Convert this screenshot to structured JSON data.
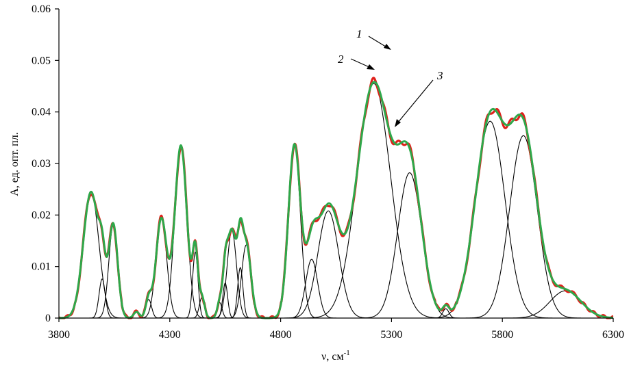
{
  "chart_data": {
    "type": "line",
    "xlabel": "ν, см",
    "xlabel_sup": "-1",
    "ylabel": "A, ед. опт. пл.",
    "xlim": [
      3800,
      6300
    ],
    "ylim": [
      0,
      0.06
    ],
    "x_ticks": [
      3800,
      4300,
      4800,
      5300,
      5800,
      6300
    ],
    "x_tick_labels": [
      "3800",
      "4300",
      "4800",
      "5300",
      "5800",
      "6300"
    ],
    "y_ticks": [
      0,
      0.01,
      0.02,
      0.03,
      0.04,
      0.05,
      0.06
    ],
    "y_tick_labels": [
      "0",
      "0.01",
      "0.02",
      "0.03",
      "0.04",
      "0.05",
      "0.06"
    ],
    "grid": false,
    "legend": "none",
    "colors": {
      "curve1": "#e0201b",
      "curve2": "#2ea84a",
      "curve3": "#000000"
    },
    "annotations": [
      {
        "text": "1",
        "target": [
          5300,
          0.0515
        ]
      },
      {
        "text": "2",
        "target": [
          5205,
          0.0483
        ]
      },
      {
        "text": "3",
        "target": [
          5280,
          0.0372
        ]
      }
    ],
    "components": [
      {
        "center": 3945,
        "amplitude": 0.0245,
        "width": 35
      },
      {
        "center": 3995,
        "amplitude": 0.0076,
        "width": 14
      },
      {
        "center": 4045,
        "amplitude": 0.018,
        "width": 20
      },
      {
        "center": 4150,
        "amplitude": 0.0012,
        "width": 13
      },
      {
        "center": 4205,
        "amplitude": 0.0036,
        "width": 13
      },
      {
        "center": 4262,
        "amplitude": 0.0193,
        "width": 24
      },
      {
        "center": 4350,
        "amplitude": 0.0335,
        "width": 27
      },
      {
        "center": 4415,
        "amplitude": 0.0128,
        "width": 12
      },
      {
        "center": 4445,
        "amplitude": 0.004,
        "width": 12
      },
      {
        "center": 4525,
        "amplitude": 0.003,
        "width": 11
      },
      {
        "center": 4550,
        "amplitude": 0.0068,
        "width": 11
      },
      {
        "center": 4580,
        "amplitude": 0.017,
        "width": 21
      },
      {
        "center": 4618,
        "amplitude": 0.0098,
        "width": 12
      },
      {
        "center": 4645,
        "amplitude": 0.0142,
        "width": 21
      },
      {
        "center": 4862,
        "amplitude": 0.0335,
        "width": 27
      },
      {
        "center": 4940,
        "amplitude": 0.0114,
        "width": 27
      },
      {
        "center": 5015,
        "amplitude": 0.0208,
        "width": 47
      },
      {
        "center": 5220,
        "amplitude": 0.0455,
        "width": 76
      },
      {
        "center": 5382,
        "amplitude": 0.0282,
        "width": 54
      },
      {
        "center": 5545,
        "amplitude": 0.0018,
        "width": 14
      },
      {
        "center": 5745,
        "amplitude": 0.0382,
        "width": 67
      },
      {
        "center": 5895,
        "amplitude": 0.0354,
        "width": 62
      },
      {
        "center": 6085,
        "amplitude": 0.0053,
        "width": 70
      }
    ]
  }
}
